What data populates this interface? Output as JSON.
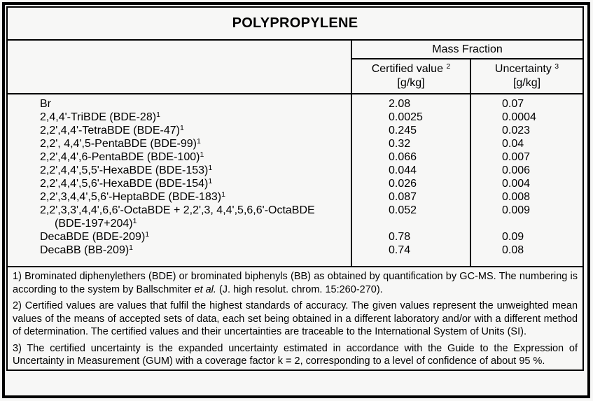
{
  "title": "POLYPROPYLENE",
  "table": {
    "group_header": "Mass Fraction",
    "columns": [
      {
        "label": "Certified value",
        "footnote_ref": "2",
        "unit": "[g/kg]"
      },
      {
        "label": "Uncertainty",
        "footnote_ref": "3",
        "unit": "[g/kg]"
      }
    ],
    "rows": [
      {
        "name": "Br",
        "footnote_ref": "",
        "certified": "2.08",
        "uncertainty": "0.07"
      },
      {
        "name": "2,4,4'-TriBDE (BDE-28)",
        "footnote_ref": "1",
        "certified": "0.0025",
        "uncertainty": "0.0004"
      },
      {
        "name": "2,2',4,4'-TetraBDE (BDE-47)",
        "footnote_ref": "1",
        "certified": "0.245",
        "uncertainty": "0.023"
      },
      {
        "name": "2,2', 4,4',5-PentaBDE (BDE-99)",
        "footnote_ref": "1",
        "certified": "0.32",
        "uncertainty": "0.04"
      },
      {
        "name": "2,2',4,4',6-PentaBDE (BDE-100)",
        "footnote_ref": "1",
        "certified": "0.066",
        "uncertainty": "0.007"
      },
      {
        "name": "2,2',4,4',5,5'-HexaBDE (BDE-153)",
        "footnote_ref": "1",
        "certified": "0.044",
        "uncertainty": "0.006"
      },
      {
        "name": "2,2',4,4',5,6'-HexaBDE (BDE-154)",
        "footnote_ref": "1",
        "certified": "0.026",
        "uncertainty": "0.004"
      },
      {
        "name": "2,2',3,4,4',5,6'-HeptaBDE (BDE-183)",
        "footnote_ref": "1",
        "certified": "0.087",
        "uncertainty": "0.008"
      },
      {
        "name": "2,2',3,3',4,4',6,6'-OctaBDE + 2,2',3, 4,4',5,6,6'-OctaBDE",
        "footnote_ref": "",
        "name_line2": "(BDE-197+204)",
        "line2_footnote_ref": "1",
        "certified": "0.052",
        "uncertainty": "0.009"
      },
      {
        "name": "DecaBDE (BDE-209)",
        "footnote_ref": "1",
        "certified": "0.78",
        "uncertainty": "0.09"
      },
      {
        "name": "DecaBB (BB-209)",
        "footnote_ref": "1",
        "certified": "0.74",
        "uncertainty": "0.08"
      }
    ],
    "footnotes": [
      {
        "text_before_italic": "1) Brominated diphenylethers (BDE) or brominated biphenyls (BB) as obtained by quantification by GC-MS. The numbering is according to the system by Ballschmiter ",
        "italic": "et al.",
        "text_after_italic": " (J. high resolut. chrom. 15:260-270)."
      },
      {
        "text": "2) Certified values are values that fulfil the highest standards of accuracy. The given values represent the unweighted mean values of the means of accepted sets of data, each set being obtained in a different laboratory and/or with a different method of determination. The certified values and their uncertainties are traceable to the International System of Units (SI)."
      },
      {
        "text": "3) The certified uncertainty is the expanded uncertainty estimated in accordance with the Guide to the Expression of Uncertainty in Measurement (GUM) with a coverage factor k = 2, corresponding to a level of confidence of about 95 %."
      }
    ]
  },
  "colors": {
    "border": "#000000",
    "background": "#f7f7f6",
    "text": "#000000"
  }
}
